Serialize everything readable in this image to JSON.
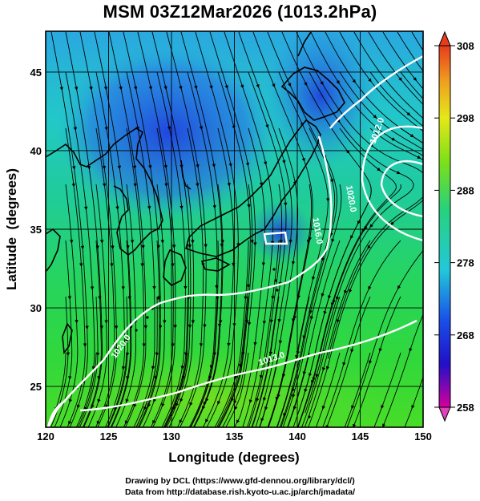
{
  "title": "MSM 03Z12Mar2026 (1013.2hPa)",
  "map": {
    "xlabel": "Longitude (degrees)",
    "ylabel": "Latitude  (degrees)",
    "x_ticks": [
      "120",
      "125",
      "130",
      "135",
      "140",
      "145",
      "150"
    ],
    "y_ticks": [
      "25",
      "30",
      "35",
      "40",
      "45"
    ],
    "lon_range": [
      120,
      150
    ],
    "lat_range": [
      22.4,
      47.6
    ],
    "grid": true
  },
  "colorbar": {
    "labels": [
      "308",
      "298",
      "288",
      "278",
      "268",
      "258"
    ],
    "range": [
      258,
      308
    ],
    "colors": [
      "#d5009c",
      "#2010c8",
      "#1a4fe8",
      "#22c8d8",
      "#28d27a",
      "#7ee018",
      "#e4e818",
      "#f0a020",
      "#e83c1c"
    ]
  },
  "isobars": {
    "color": "#ffffff",
    "labels": [
      "1012.0",
      "1020.0",
      "1016.0",
      "1020.0",
      "1013.0"
    ]
  },
  "footer": {
    "line1": "Drawing by DCL (https://www.gfd-dennou.org/library/dcl/)",
    "line2": "Data from http://database.rish.kyoto-u.ac.jp/arch/jmadata/"
  }
}
